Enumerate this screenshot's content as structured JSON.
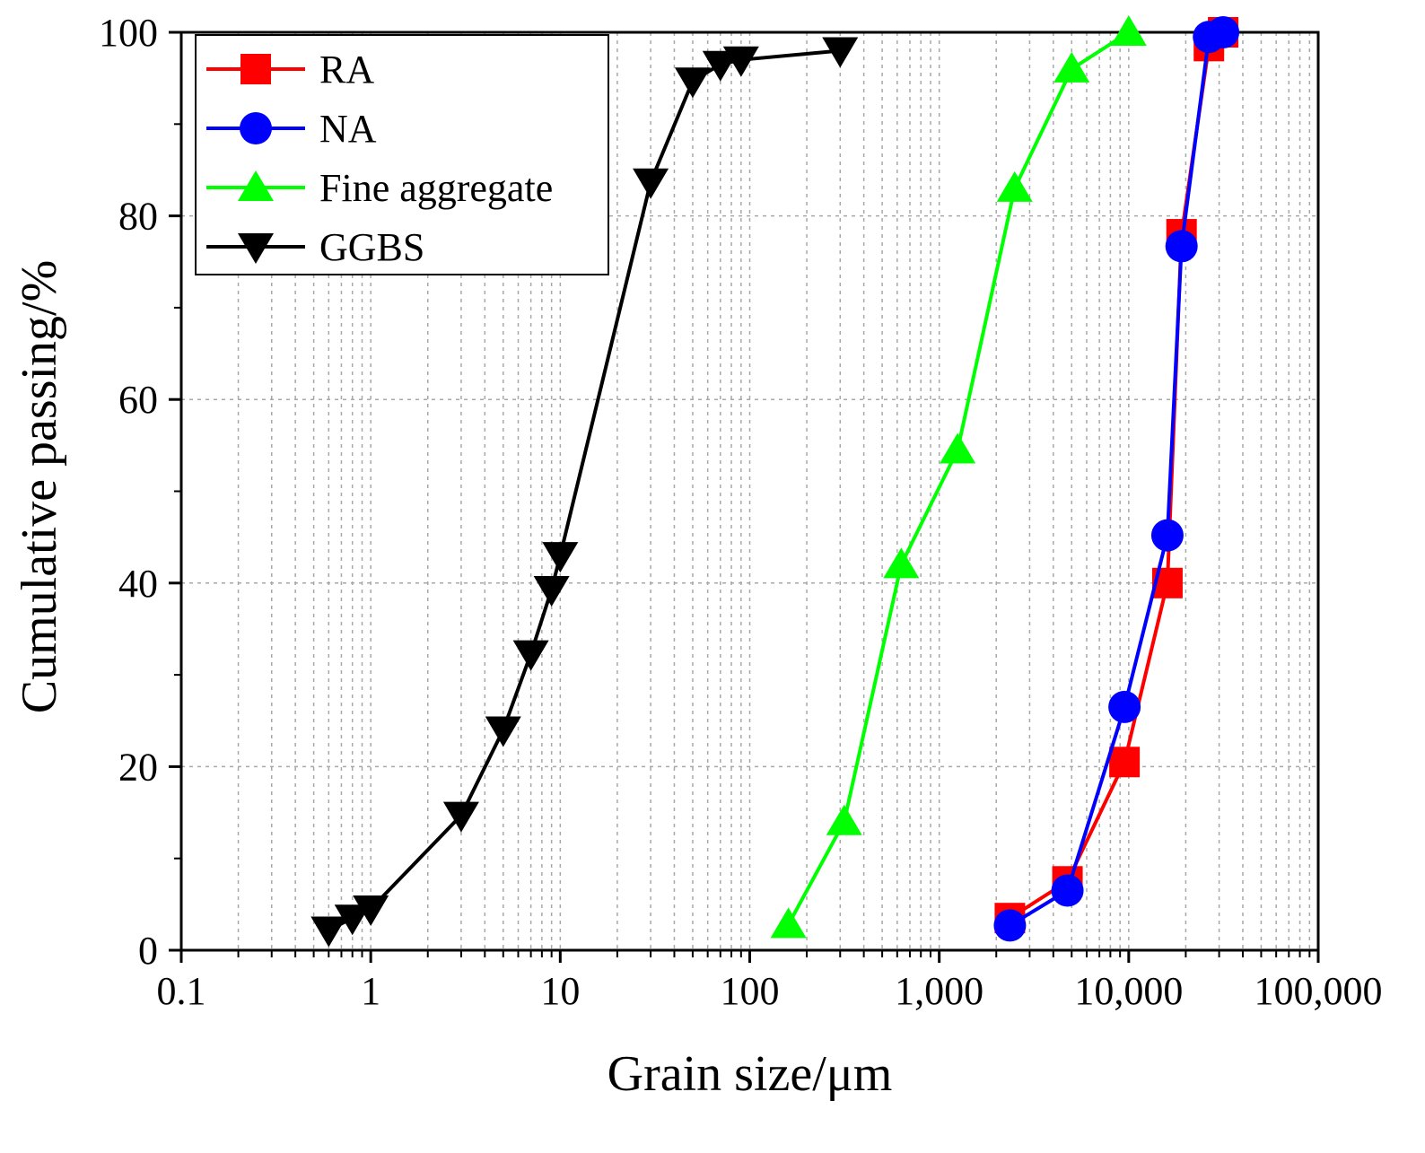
{
  "chart_data": {
    "type": "line",
    "title": "",
    "xlabel": "Grain size/μm",
    "ylabel": "Cumulative passing/%",
    "x_scale": "log",
    "xlim": [
      0.1,
      100000
    ],
    "ylim": [
      0,
      100
    ],
    "x_ticks": [
      {
        "value": 0.1,
        "label": "0.1"
      },
      {
        "value": 1,
        "label": "1"
      },
      {
        "value": 10,
        "label": "10"
      },
      {
        "value": 100,
        "label": "100"
      },
      {
        "value": 1000,
        "label": "1,000"
      },
      {
        "value": 10000,
        "label": "10,000"
      },
      {
        "value": 100000,
        "label": "100,000"
      }
    ],
    "y_ticks": [
      {
        "value": 0,
        "label": "0"
      },
      {
        "value": 20,
        "label": "20"
      },
      {
        "value": 40,
        "label": "40"
      },
      {
        "value": 60,
        "label": "60"
      },
      {
        "value": 80,
        "label": "80"
      },
      {
        "value": 100,
        "label": "100"
      }
    ],
    "grid": true,
    "legend_position": "top-left",
    "series": [
      {
        "name": "RA",
        "color": "#ff0000",
        "marker": "square",
        "points": [
          [
            2360,
            3.5
          ],
          [
            4750,
            7.5
          ],
          [
            9500,
            20.5
          ],
          [
            16000,
            40
          ],
          [
            19000,
            78
          ],
          [
            26500,
            98.5
          ],
          [
            31500,
            100
          ]
        ]
      },
      {
        "name": "NA",
        "color": "#0000ff",
        "marker": "circle",
        "points": [
          [
            2360,
            2.7
          ],
          [
            4750,
            6.5
          ],
          [
            9500,
            26.5
          ],
          [
            16000,
            45.2
          ],
          [
            19000,
            76.7
          ],
          [
            26500,
            99.5
          ],
          [
            31500,
            100
          ]
        ]
      },
      {
        "name": "Fine aggregate",
        "color": "#00ff00",
        "marker": "triangle-up",
        "points": [
          [
            160,
            2.8
          ],
          [
            315,
            14
          ],
          [
            630,
            42
          ],
          [
            1250,
            54.5
          ],
          [
            2500,
            83
          ],
          [
            5000,
            96
          ],
          [
            10000,
            100
          ]
        ]
      },
      {
        "name": "GGBS",
        "color": "#000000",
        "marker": "triangle-down",
        "points": [
          [
            0.6,
            2.2
          ],
          [
            0.8,
            3.5
          ],
          [
            1,
            4.5
          ],
          [
            3,
            14.7
          ],
          [
            5,
            24
          ],
          [
            7,
            32.3
          ],
          [
            9,
            39.3
          ],
          [
            10,
            43
          ],
          [
            30,
            83.7
          ],
          [
            50,
            94.7
          ],
          [
            70,
            96.5
          ],
          [
            90,
            97
          ],
          [
            300,
            98
          ]
        ]
      }
    ]
  }
}
